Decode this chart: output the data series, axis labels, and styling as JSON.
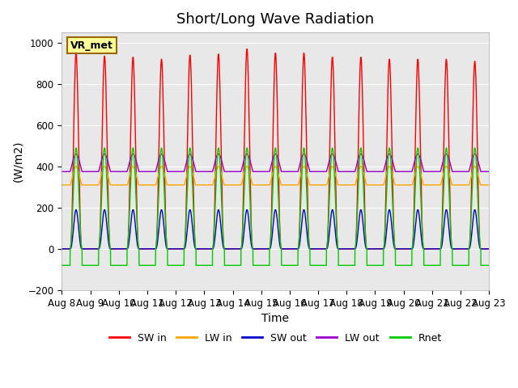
{
  "title": "Short/Long Wave Radiation",
  "ylabel": "(W/m2)",
  "xlabel": "Time",
  "label_box_text": "VR_met",
  "ylim": [
    -200,
    1050
  ],
  "xtick_labels": [
    "Aug 8",
    "Aug 9",
    "Aug 10",
    "Aug 11",
    "Aug 12",
    "Aug 13",
    "Aug 14",
    "Aug 15",
    "Aug 16",
    "Aug 17",
    "Aug 18",
    "Aug 19",
    "Aug 20",
    "Aug 21",
    "Aug 22",
    "Aug 23"
  ],
  "colors": {
    "SW_in": "#ff0000",
    "LW_in": "#ffa500",
    "SW_out": "#0000cc",
    "LW_out": "#9900cc",
    "Rnet": "#00cc00"
  },
  "legend_labels": [
    "SW in",
    "LW in",
    "SW out",
    "LW out",
    "Rnet"
  ],
  "n_days": 15,
  "dt_per_day": 480,
  "SW_in_peak": [
    950.0,
    935.0,
    930.0,
    920.0,
    940.0,
    945.0,
    970.0,
    950.0,
    950.0,
    930.0,
    930.0,
    920.0,
    920.0,
    920.0,
    910.0
  ],
  "LW_in_night": 310.0,
  "LW_in_day_peak": 400.0,
  "SW_out_peak": 200.0,
  "LW_out_night": 375.0,
  "LW_out_day_peak": 460.0,
  "Rnet_day_peak": 490.0,
  "Rnet_night": -80.0,
  "background_color": "#e8e8e8",
  "title_fontsize": 13,
  "axis_fontsize": 10,
  "tick_fontsize": 8.5
}
